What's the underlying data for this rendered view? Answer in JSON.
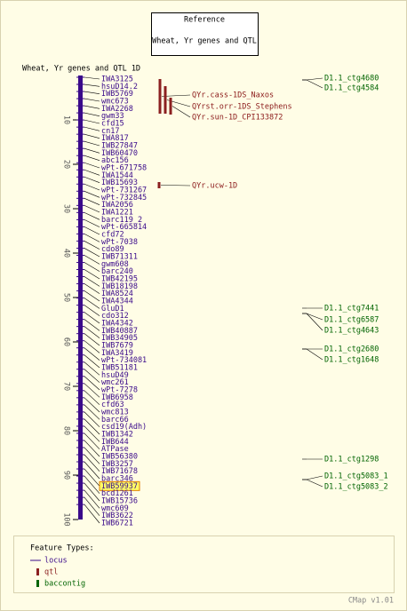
{
  "reference": {
    "heading": "Reference",
    "name": "Wheat, Yr genes and QTL"
  },
  "map": {
    "title": "Wheat, Yr genes and QTL 1D",
    "scale_range": [
      0,
      100
    ],
    "scale_ticks": [
      10,
      20,
      30,
      40,
      50,
      60,
      70,
      80,
      90,
      100
    ],
    "loci": [
      {
        "name": "IWA3125"
      },
      {
        "name": "hsuD14.2"
      },
      {
        "name": "IWB5769"
      },
      {
        "name": "wmc673"
      },
      {
        "name": "IWA2268"
      },
      {
        "name": "gwm33"
      },
      {
        "name": "cfd15"
      },
      {
        "name": "cn17"
      },
      {
        "name": "IWA817"
      },
      {
        "name": "IWB27847"
      },
      {
        "name": "IWB60470"
      },
      {
        "name": "abc156"
      },
      {
        "name": "wPt-671758"
      },
      {
        "name": "IWA1544"
      },
      {
        "name": "IWB15693"
      },
      {
        "name": "wPt-731267"
      },
      {
        "name": "wPt-732845"
      },
      {
        "name": "IWA2056"
      },
      {
        "name": "IWA1221"
      },
      {
        "name": "barc119_2"
      },
      {
        "name": "wPt-665814"
      },
      {
        "name": "cfd72"
      },
      {
        "name": "wPt-7038"
      },
      {
        "name": "cdo89"
      },
      {
        "name": "IWB71311"
      },
      {
        "name": "gwm608"
      },
      {
        "name": "barc240"
      },
      {
        "name": "IWB42195"
      },
      {
        "name": "IWB18198"
      },
      {
        "name": "IWA8524"
      },
      {
        "name": "IWA4344"
      },
      {
        "name": "GluD1"
      },
      {
        "name": "cdo312"
      },
      {
        "name": "IWA4342"
      },
      {
        "name": "IWB40887"
      },
      {
        "name": "IWB34905"
      },
      {
        "name": "IWB7679"
      },
      {
        "name": "IWA3419"
      },
      {
        "name": "wPt-734081"
      },
      {
        "name": "IWB51181"
      },
      {
        "name": "hsuD49"
      },
      {
        "name": "wmc261"
      },
      {
        "name": "wPt-7278"
      },
      {
        "name": "IWB6958"
      },
      {
        "name": "cfd63"
      },
      {
        "name": "wmc813"
      },
      {
        "name": "barc66"
      },
      {
        "name": "csd19(Adh)"
      },
      {
        "name": "IWB1342"
      },
      {
        "name": "IWB644"
      },
      {
        "name": "ATPase"
      },
      {
        "name": "IWB56380"
      },
      {
        "name": "IWB3257"
      },
      {
        "name": "IWB71678"
      },
      {
        "name": "barc346"
      },
      {
        "name": "IWB59937",
        "highlighted": true
      },
      {
        "name": "bcd1261"
      },
      {
        "name": "IWB15736"
      },
      {
        "name": "wmc609"
      },
      {
        "name": "IWB3622"
      },
      {
        "name": "IWB6721"
      }
    ],
    "qtls": [
      "QYr.cass-1DS_Naxos",
      "QYrst.orr-1DS_Stephens",
      "QYr.sun-1D_CPI133872",
      "QYr.ucw-1D"
    ],
    "contigs": [
      "D1.1_ctg4680",
      "D1.1_ctg4584",
      "D1.1_ctg7441",
      "D1.1_ctg6587",
      "D1.1_ctg4643",
      "D1.1_ctg2680",
      "D1.1_ctg1648",
      "D1.1_ctg1298",
      "D1.1_ctg5083_1",
      "D1.1_ctg5083_2"
    ]
  },
  "legend": {
    "title": "Feature Types:",
    "items": [
      "locus",
      "qtl",
      "baccontig"
    ]
  },
  "footer": "CMap v1.01"
}
